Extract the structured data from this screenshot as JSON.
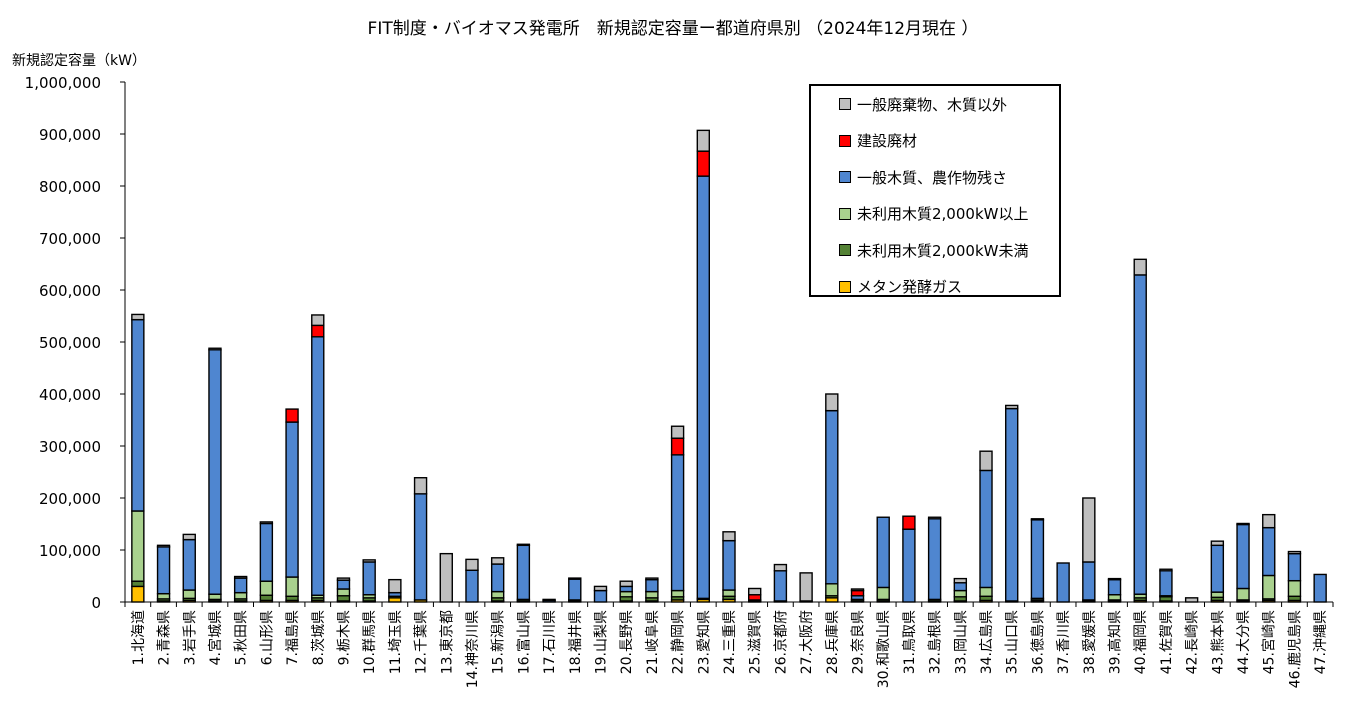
{
  "title": "FIT制度・バイオマス発電所　新規認定容量ー都道府県別 （2024年12月現在 ）",
  "colors": {
    "general_waste": "#bfbfbf",
    "construction_waste": "#ff0000",
    "general_wood": "#4f86d0",
    "unused_wood_large": "#a9d18e",
    "unused_wood_small": "#548235",
    "methane": "#ffc000"
  },
  "chart_data": {
    "type": "bar",
    "stacked": true,
    "title": "FIT制度・バイオマス発電所　新規認定容量ー都道府県別 （2024年12月現在 ）",
    "ylabel": "新規認定容量（kW）",
    "xlabel": "",
    "ylim": [
      0,
      1000000
    ],
    "yticks": [
      "0",
      "100,000",
      "200,000",
      "300,000",
      "400,000",
      "500,000",
      "600,000",
      "700,000",
      "800,000",
      "900,000",
      "1,000,000"
    ],
    "legend_position": "top-right",
    "categories": [
      "1.北海道",
      "2.青森県",
      "3.岩手県",
      "4.宮城県",
      "5.秋田県",
      "6.山形県",
      "7.福島県",
      "8.茨城県",
      "9.栃木県",
      "10.群馬県",
      "11.埼玉県",
      "12.千葉県",
      "13.東京都",
      "14.神奈川県",
      "15.新潟県",
      "16.富山県",
      "17.石川県",
      "18.福井県",
      "19.山梨県",
      "20.長野県",
      "21.岐阜県",
      "22.静岡県",
      "23.愛知県",
      "24.三重県",
      "25.滋賀県",
      "26.京都府",
      "27.大阪府",
      "28.兵庫県",
      "29.奈良県",
      "30.和歌山県",
      "31.鳥取県",
      "32.島根県",
      "33.岡山県",
      "34.広島県",
      "35.山口県",
      "36.徳島県",
      "37.香川県",
      "38.愛媛県",
      "39.高知県",
      "40.福岡県",
      "41.佐賀県",
      "42.長崎県",
      "43.熊本県",
      "44.大分県",
      "45.宮崎県",
      "46.鹿児島県",
      "47.沖縄県"
    ],
    "series": [
      {
        "name": "メタン発酵ガス",
        "color_key": "methane",
        "values": [
          30000,
          2000,
          3000,
          2000,
          2000,
          3000,
          3000,
          3000,
          2000,
          2000,
          8000,
          4000,
          0,
          0,
          2000,
          2000,
          0,
          2000,
          0,
          2000,
          2000,
          4000,
          5000,
          5000,
          2000,
          2000,
          2000,
          8000,
          2000,
          2000,
          0,
          2000,
          2000,
          3000,
          2000,
          2000,
          0,
          2000,
          2000,
          3000,
          2000,
          0,
          3000,
          2000,
          3000,
          3000,
          0
        ]
      },
      {
        "name": "未利用木質2,000kW未満",
        "color_key": "unused_wood_small",
        "values": [
          10000,
          4000,
          4000,
          3000,
          4000,
          10000,
          8000,
          5000,
          10000,
          6000,
          3000,
          0,
          0,
          0,
          6000,
          3000,
          0,
          2000,
          0,
          8000,
          6000,
          6000,
          2000,
          6000,
          0,
          0,
          0,
          4000,
          3000,
          3000,
          0,
          3000,
          8000,
          8000,
          0,
          2000,
          0,
          2000,
          2000,
          5000,
          8000,
          0,
          6000,
          2000,
          3000,
          8000,
          0
        ]
      },
      {
        "name": "未利用木質2,000kW以上",
        "color_key": "unused_wood_large",
        "values": [
          135000,
          10000,
          16000,
          10000,
          12000,
          27000,
          37000,
          5000,
          13000,
          6000,
          0,
          0,
          0,
          0,
          12000,
          0,
          0,
          0,
          0,
          10000,
          12000,
          12000,
          0,
          12000,
          0,
          0,
          0,
          23000,
          0,
          23000,
          0,
          0,
          12000,
          17000,
          0,
          3000,
          0,
          0,
          10000,
          7000,
          2000,
          0,
          10000,
          22000,
          45000,
          30000,
          0
        ]
      },
      {
        "name": "一般木質、農作物残さ",
        "color_key": "general_wood",
        "values": [
          368000,
          90000,
          97000,
          470000,
          28000,
          111000,
          298000,
          497000,
          17000,
          63000,
          7000,
          204000,
          0,
          61000,
          53000,
          104000,
          3000,
          40000,
          22000,
          10000,
          23000,
          261000,
          812000,
          95000,
          2000,
          58000,
          0,
          333000,
          7000,
          135000,
          140000,
          155000,
          15000,
          225000,
          370000,
          151000,
          75000,
          73000,
          29000,
          614000,
          48000,
          0,
          90000,
          123000,
          92000,
          52000,
          53000
        ]
      },
      {
        "name": "建設廃材",
        "color_key": "construction_waste",
        "values": [
          0,
          0,
          0,
          0,
          0,
          0,
          25000,
          22000,
          0,
          0,
          0,
          0,
          0,
          0,
          0,
          0,
          0,
          0,
          0,
          0,
          0,
          32000,
          48000,
          0,
          10000,
          0,
          0,
          0,
          10000,
          0,
          25000,
          0,
          0,
          0,
          0,
          0,
          0,
          0,
          0,
          0,
          0,
          0,
          0,
          0,
          0,
          0,
          0
        ]
      },
      {
        "name": "一般廃棄物、木質以外",
        "color_key": "general_waste",
        "values": [
          10000,
          3000,
          10000,
          3000,
          3000,
          3000,
          0,
          20000,
          4000,
          4000,
          25000,
          31000,
          93000,
          21000,
          12000,
          2000,
          2000,
          2000,
          8000,
          10000,
          3000,
          23000,
          40000,
          17000,
          12000,
          12000,
          54000,
          32000,
          3000,
          0,
          0,
          3000,
          8000,
          37000,
          6000,
          2000,
          0,
          123000,
          2000,
          30000,
          3000,
          8000,
          8000,
          2000,
          25000,
          4000,
          0
        ]
      }
    ]
  }
}
